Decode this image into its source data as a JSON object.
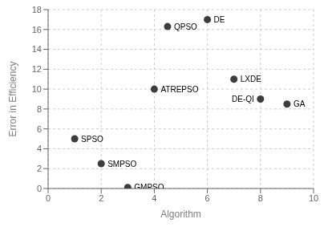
{
  "chart_data": {
    "type": "scatter",
    "x": [
      1,
      2,
      3,
      4,
      4.5,
      6,
      7,
      8,
      9
    ],
    "values": [
      5,
      2.5,
      0.1,
      10,
      16.3,
      17,
      11,
      9,
      8.5
    ],
    "labels": [
      "SPSO",
      "SMPSO",
      "GMPSO",
      "ATREPSO",
      "QPSO",
      "DE",
      "LXDE",
      "DE-QI",
      "GA"
    ],
    "xlabel": "Algorithm",
    "ylabel": "Error in Efficiency",
    "xlim": [
      0,
      10
    ],
    "ylim": [
      0,
      18
    ],
    "xticks": [
      0,
      2,
      4,
      6,
      8,
      10
    ],
    "yticks": [
      0,
      2,
      4,
      6,
      8,
      10,
      12,
      14,
      16,
      18
    ],
    "color": "#3d3d3d",
    "marker": "circle",
    "grid": true
  }
}
